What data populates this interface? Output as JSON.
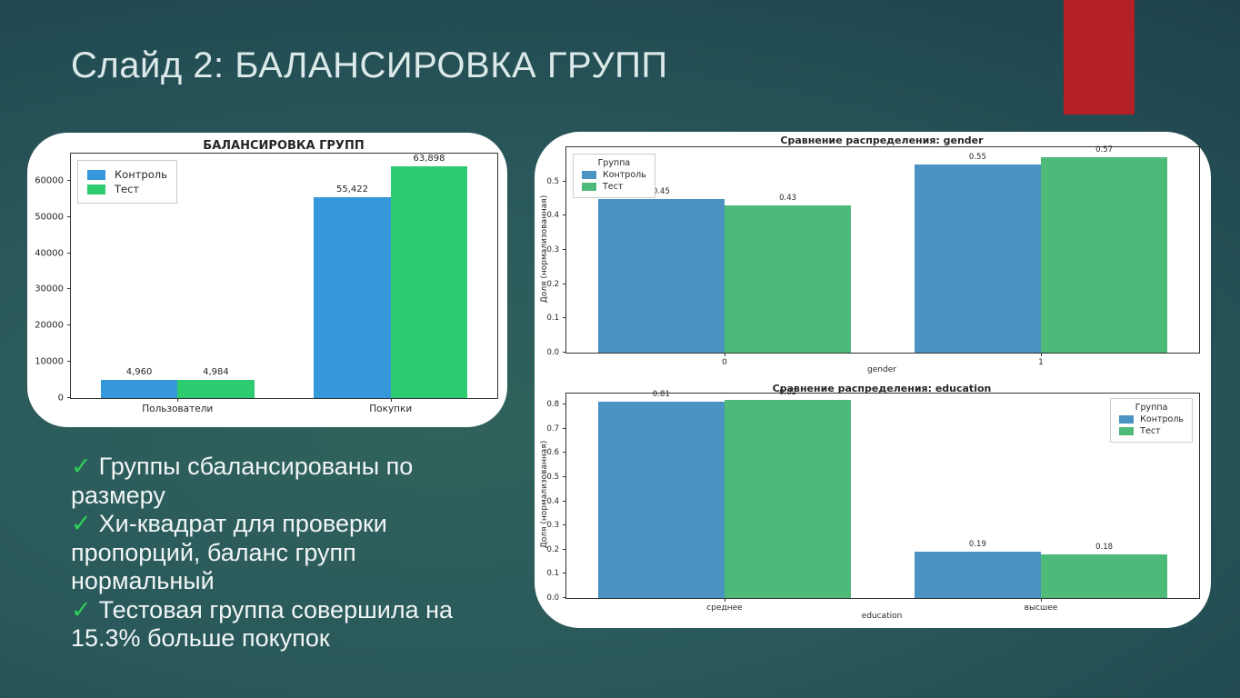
{
  "slide": {
    "title": "Слайд 2: БАЛАНСИРОВКА ГРУПП",
    "accent_color": "#b32025",
    "background_center_color": "#30635b",
    "background_edge_color": "#1b3a47",
    "title_color": "#dce9e9"
  },
  "checklist": {
    "check_symbol": "✓",
    "check_color": "#2ed056",
    "items": [
      "Группы сбалансированы по размеру",
      "Хи-квадрат для проверки пропорций, баланс групп нормальный",
      "Тестовая группа совершила на 15.3% больше покупок"
    ]
  },
  "chart_data": [
    {
      "type": "bar",
      "title": "БАЛАНСИРОВКА ГРУПП",
      "categories": [
        "Пользователи",
        "Покупки"
      ],
      "series": [
        {
          "name": "Контроль",
          "color": "#3498db",
          "values": [
            4960,
            55422
          ]
        },
        {
          "name": "Тест",
          "color": "#2ecc71",
          "values": [
            4984,
            63898
          ]
        }
      ],
      "value_labels": [
        [
          "4,960",
          "55,422"
        ],
        [
          "4,984",
          "63,898"
        ]
      ],
      "xlabel": "",
      "ylabel": "",
      "ylim": [
        0,
        67500
      ],
      "yticks": [
        0,
        10000,
        20000,
        30000,
        40000,
        50000,
        60000
      ],
      "ytick_labels": [
        "0",
        "10000",
        "20000",
        "30000",
        "40000",
        "50000",
        "60000"
      ],
      "grid": false,
      "legend": {
        "title": "",
        "position": "upper-left"
      },
      "bar_frac": 0.36
    },
    {
      "type": "bar",
      "title": "Сравнение распределения: gender",
      "categories": [
        "0",
        "1"
      ],
      "series": [
        {
          "name": "Контроль",
          "color": "#4a93c3",
          "values": [
            0.45,
            0.55
          ]
        },
        {
          "name": "Тест",
          "color": "#4dba79",
          "values": [
            0.43,
            0.57
          ]
        }
      ],
      "value_labels": [
        [
          "0.45",
          "0.55"
        ],
        [
          "0.43",
          "0.57"
        ]
      ],
      "xlabel": "gender",
      "ylabel": "Доля (нормализованная)",
      "ylim": [
        0,
        0.6
      ],
      "yticks": [
        0,
        0.1,
        0.2,
        0.3,
        0.4,
        0.5
      ],
      "ytick_labels": [
        "0.0",
        "0.1",
        "0.2",
        "0.3",
        "0.4",
        "0.5"
      ],
      "grid": false,
      "legend": {
        "title": "Группа",
        "position": "upper-left"
      },
      "bar_frac": 0.4
    },
    {
      "type": "bar",
      "title": "Сравнение распределения: education",
      "categories": [
        "среднее",
        "высшее"
      ],
      "series": [
        {
          "name": "Контроль",
          "color": "#4a93c3",
          "values": [
            0.81,
            0.19
          ]
        },
        {
          "name": "Тест",
          "color": "#4dba79",
          "values": [
            0.82,
            0.18
          ]
        }
      ],
      "value_labels": [
        [
          "0.81",
          "0.19"
        ],
        [
          "0.82",
          "0.18"
        ]
      ],
      "xlabel": "education",
      "ylabel": "Доля (нормализованная)",
      "ylim": [
        0,
        0.845
      ],
      "yticks": [
        0,
        0.1,
        0.2,
        0.3,
        0.4,
        0.5,
        0.6,
        0.7,
        0.8
      ],
      "ytick_labels": [
        "0.0",
        "0.1",
        "0.2",
        "0.3",
        "0.4",
        "0.5",
        "0.6",
        "0.7",
        "0.8"
      ],
      "grid": false,
      "legend": {
        "title": "Группа",
        "position": "upper-right"
      },
      "bar_frac": 0.4
    }
  ]
}
